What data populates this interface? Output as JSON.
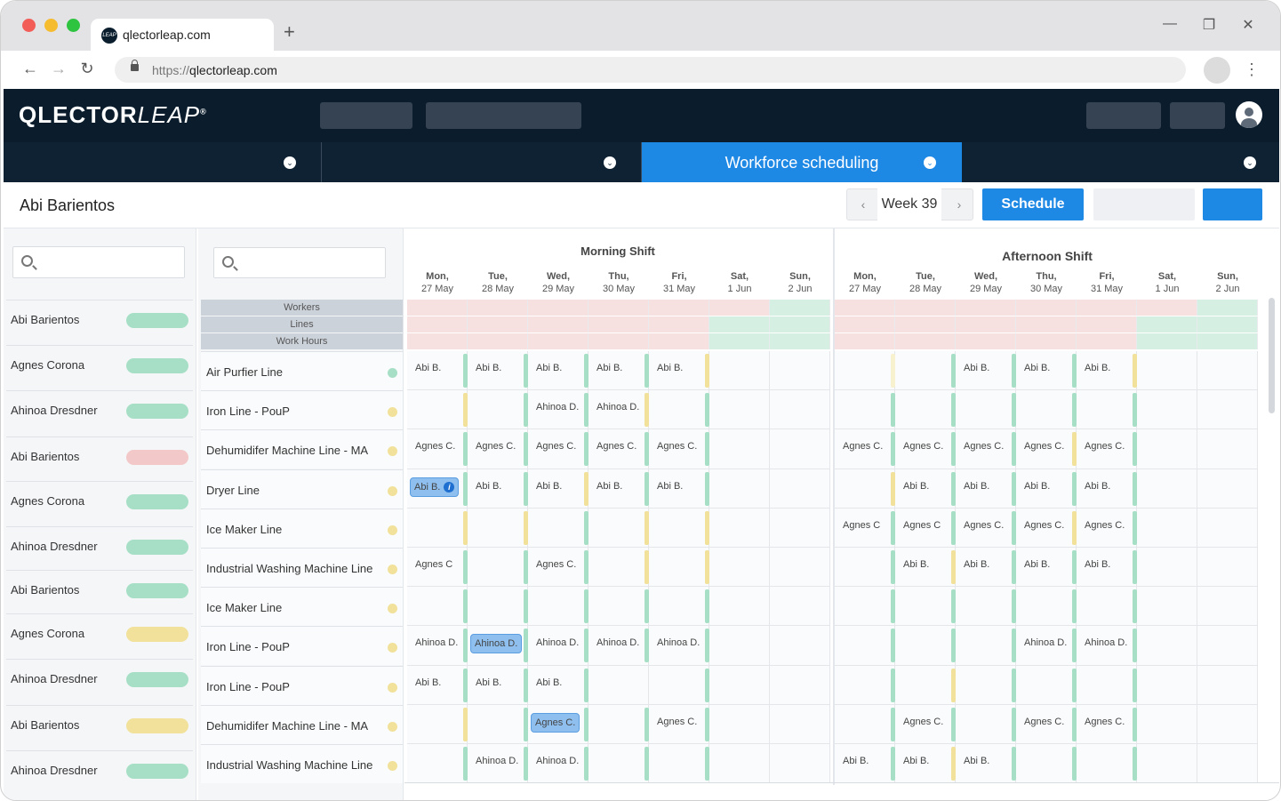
{
  "browser": {
    "tab_title": "qlectorleap.com",
    "tab_favicon_text": "LEAP",
    "new_tab": "+",
    "minimize": "—",
    "restore": "❐",
    "close": "✕",
    "back": "←",
    "forward": "→",
    "reload": "↻",
    "url_scheme": "https://",
    "url_host": "qlectorleap.com",
    "menu": "⋮"
  },
  "app": {
    "logo_main": "QLECTOR",
    "logo_italic": "LEAP",
    "logo_mark": "®",
    "modules": [
      {
        "label": "",
        "chevron": "⌄"
      },
      {
        "label": "",
        "chevron": "⌄"
      },
      {
        "label": "Workforce scheduling",
        "chevron": "⌄"
      },
      {
        "label": "",
        "chevron": "⌄"
      }
    ]
  },
  "header": {
    "title": "Abi Barientos",
    "week_prev": "‹",
    "week_label": "Week 39",
    "week_next": "›",
    "schedule_label": "Schedule"
  },
  "workers": [
    {
      "name": "Abi Barientos",
      "status": "green"
    },
    {
      "name": "Agnes Corona",
      "status": "green"
    },
    {
      "name": "Ahinoa Dresdner",
      "status": "green"
    },
    {
      "name": "Abi Barientos",
      "status": "red"
    },
    {
      "name": "Agnes Corona",
      "status": "green"
    },
    {
      "name": "Ahinoa Dresdner",
      "status": "green"
    },
    {
      "name": "Abi Barientos",
      "status": "green"
    },
    {
      "name": "Agnes Corona",
      "status": "yellow"
    },
    {
      "name": "Ahinoa Dresdner",
      "status": "green"
    },
    {
      "name": "Abi Barientos",
      "status": "yellow"
    },
    {
      "name": "Ahinoa Dresdner",
      "status": "green"
    }
  ],
  "summary_labels": [
    "Workers",
    "Lines",
    "Work Hours"
  ],
  "lines": [
    {
      "name": "Air Purfier Line",
      "status": "green"
    },
    {
      "name": "Iron Line - PouP",
      "status": "yellow"
    },
    {
      "name": "Dehumidifer Machine Line - MA",
      "status": "yellow"
    },
    {
      "name": "Dryer Line",
      "status": "yellow"
    },
    {
      "name": "Ice Maker Line",
      "status": "yellow"
    },
    {
      "name": "Industrial Washing Machine Line",
      "status": "yellow"
    },
    {
      "name": "Ice Maker Line",
      "status": "yellow"
    },
    {
      "name": "Iron Line - PouP",
      "status": "yellow"
    },
    {
      "name": "Iron Line - PouP",
      "status": "yellow"
    },
    {
      "name": "Dehumidifer Machine Line - MA",
      "status": "yellow"
    },
    {
      "name": "Industrial Washing Machine Line",
      "status": "yellow"
    }
  ],
  "shifts": [
    {
      "title": "Morning Shift"
    },
    {
      "title": "Afternoon Shift"
    }
  ],
  "days": [
    {
      "dow": "Mon,",
      "date": "27 May"
    },
    {
      "dow": "Tue,",
      "date": "28 May"
    },
    {
      "dow": "Wed,",
      "date": "29 May"
    },
    {
      "dow": "Thu,",
      "date": "30 May"
    },
    {
      "dow": "Fri,",
      "date": "31 May"
    },
    {
      "dow": "Sat,",
      "date": "1 Jun"
    },
    {
      "dow": "Sun,",
      "date": "2 Jun"
    }
  ],
  "summary_status": {
    "morning": [
      [
        "red",
        "red",
        "red",
        "red",
        "red",
        "red",
        "green"
      ],
      [
        "red",
        "red",
        "red",
        "red",
        "red",
        "green",
        "green"
      ],
      [
        "red",
        "red",
        "red",
        "red",
        "red",
        "green",
        "green"
      ]
    ],
    "afternoon": [
      [
        "red",
        "red",
        "red",
        "red",
        "red",
        "red",
        "green"
      ],
      [
        "red",
        "red",
        "red",
        "red",
        "red",
        "green",
        "green"
      ],
      [
        "red",
        "red",
        "red",
        "red",
        "red",
        "green",
        "green"
      ]
    ]
  },
  "assignments": {
    "morning": [
      [
        "Abi B.",
        "Abi B.",
        "Abi B.",
        "Abi B.",
        "Abi B.",
        "",
        ""
      ],
      [
        "",
        "",
        "Ahinoa D.",
        "Ahinoa D.",
        "",
        "",
        ""
      ],
      [
        "Agnes C.",
        "Agnes C.",
        "Agnes C.",
        "Agnes C.",
        "Agnes C.",
        "",
        ""
      ],
      [
        "Abi B.*",
        "Abi B.",
        "Abi B.",
        "Abi B.",
        "Abi B.",
        "",
        ""
      ],
      [
        "",
        "",
        "",
        "",
        "",
        "",
        ""
      ],
      [
        "Agnes C",
        "",
        "Agnes C.",
        "",
        "",
        "",
        ""
      ],
      [
        "",
        "",
        "",
        "",
        "",
        "",
        ""
      ],
      [
        "Ahinoa D.",
        "Ahinoa D.*",
        "Ahinoa D.",
        "Ahinoa D.",
        "Ahinoa D.",
        "",
        ""
      ],
      [
        "Abi B.",
        "Abi B.",
        "Abi B.",
        "",
        "",
        "",
        ""
      ],
      [
        "",
        "",
        "Agnes C.*",
        "",
        "Agnes C.",
        "",
        ""
      ],
      [
        "",
        "Ahinoa D.",
        "Ahinoa D.",
        "",
        "",
        "",
        ""
      ]
    ],
    "afternoon": [
      [
        "",
        "",
        "Abi B.",
        "Abi B.",
        "Abi B.",
        "",
        ""
      ],
      [
        "",
        "",
        "",
        "",
        "",
        "",
        ""
      ],
      [
        "Agnes C.",
        "Agnes C.",
        "Agnes C.",
        "Agnes C.",
        "Agnes C.",
        "",
        ""
      ],
      [
        "",
        "Abi B.",
        "Abi B.",
        "Abi B.",
        "Abi B.",
        "",
        ""
      ],
      [
        "Agnes C",
        "Agnes C",
        "Agnes C.",
        "Agnes C.",
        "Agnes C.",
        "",
        ""
      ],
      [
        "",
        "Abi B.",
        "Abi B.",
        "Abi B.",
        "Abi B.",
        "",
        ""
      ],
      [
        "",
        "",
        "",
        "",
        "",
        "",
        ""
      ],
      [
        "",
        "",
        "",
        "Ahinoa D.",
        "Ahinoa D.",
        "",
        ""
      ],
      [
        "",
        "",
        "",
        "",
        "",
        "",
        ""
      ],
      [
        "",
        "Agnes C.",
        "",
        "Agnes C.",
        "Agnes C.",
        "",
        ""
      ],
      [
        "Abi B.",
        "Abi B.",
        "Abi B.",
        "",
        "",
        "",
        ""
      ]
    ]
  },
  "bar_status": {
    "morning": [
      [
        "green",
        "green",
        "green",
        "green",
        "yellow",
        "",
        ""
      ],
      [
        "yellow",
        "green",
        "green",
        "yellow",
        "green",
        "",
        ""
      ],
      [
        "green",
        "green",
        "green",
        "green",
        "green",
        "",
        ""
      ],
      [
        "green",
        "green",
        "yellow",
        "green",
        "green",
        "",
        ""
      ],
      [
        "yellow",
        "yellow",
        "green",
        "yellow",
        "yellow",
        "",
        ""
      ],
      [
        "green",
        "green",
        "green",
        "yellow",
        "yellow",
        "",
        ""
      ],
      [
        "green",
        "green",
        "green",
        "green",
        "green",
        "",
        ""
      ],
      [
        "green",
        "green",
        "green",
        "green",
        "green",
        "",
        ""
      ],
      [
        "green",
        "green",
        "green",
        "",
        "green",
        "",
        ""
      ],
      [
        "yellow",
        "green",
        "green",
        "green",
        "green",
        "",
        ""
      ],
      [
        "green",
        "green",
        "green",
        "green",
        "green",
        "",
        ""
      ]
    ],
    "afternoon": [
      [
        "lightyellow",
        "green",
        "green",
        "green",
        "yellow",
        "",
        ""
      ],
      [
        "green",
        "green",
        "green",
        "green",
        "green",
        "",
        ""
      ],
      [
        "green",
        "green",
        "green",
        "yellow",
        "green",
        "",
        ""
      ],
      [
        "yellow",
        "green",
        "green",
        "green",
        "green",
        "",
        ""
      ],
      [
        "green",
        "green",
        "green",
        "yellow",
        "green",
        "",
        ""
      ],
      [
        "green",
        "yellow",
        "green",
        "green",
        "green",
        "",
        ""
      ],
      [
        "green",
        "green",
        "green",
        "green",
        "green",
        "",
        ""
      ],
      [
        "green",
        "green",
        "green",
        "green",
        "green",
        "",
        ""
      ],
      [
        "green",
        "yellow",
        "green",
        "green",
        "green",
        "",
        ""
      ],
      [
        "green",
        "green",
        "green",
        "green",
        "green",
        "",
        ""
      ],
      [
        "green",
        "yellow",
        "green",
        "green",
        "green",
        "",
        ""
      ]
    ]
  },
  "colors": {
    "accent": "#1e88e5",
    "navy": "#0b1d2d",
    "green": "#a6dfc6",
    "yellow": "#f1e19a",
    "red": "#f2c8c8",
    "summary_red": "#f6e0e0",
    "summary_green": "#d5efe3"
  }
}
